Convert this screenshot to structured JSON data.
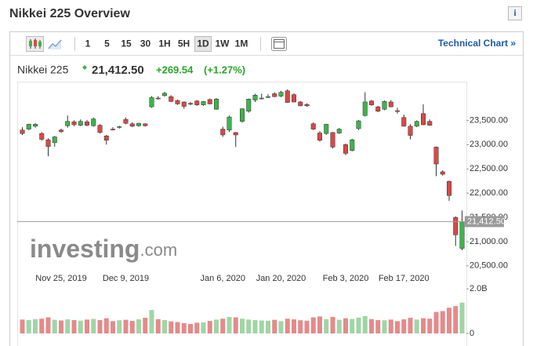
{
  "header": {
    "title": "Nikkei 225 Overview",
    "info": "i"
  },
  "toolbar": {
    "intervals": [
      "1",
      "5",
      "15",
      "30",
      "1H",
      "5H",
      "1D",
      "1W",
      "1M"
    ],
    "selected": "1D",
    "link": "Technical Chart »"
  },
  "quote": {
    "name": "Nikkei 225",
    "last": "21,412.50",
    "change": "+269.54",
    "change_pct": "(+1.27%)"
  },
  "chart_data": {
    "type": "candlestick",
    "watermark_brand": "investing",
    "watermark_domain": ".com",
    "categories": [
      null,
      null,
      null,
      null,
      null,
      null,
      "Nov 25, 2019",
      null,
      null,
      null,
      null,
      null,
      null,
      null,
      null,
      null,
      "Dec 9, 2019",
      null,
      null,
      null,
      null,
      null,
      null,
      null,
      null,
      null,
      null,
      null,
      null,
      null,
      null,
      "Jan 6, 2020",
      null,
      null,
      null,
      null,
      null,
      null,
      null,
      null,
      "Jan 20, 2020",
      null,
      null,
      null,
      null,
      null,
      null,
      null,
      null,
      null,
      "Feb 3, 2020",
      null,
      null,
      null,
      null,
      null,
      null,
      null,
      null,
      "Feb 17, 2020",
      null,
      null,
      null,
      null,
      null,
      null,
      null,
      null,
      null
    ],
    "open": [
      23300,
      23320,
      23380,
      23230,
      23100,
      23040,
      23300,
      23390,
      23470,
      23400,
      23470,
      23390,
      23400,
      23180,
      23320,
      23360,
      23520,
      23430,
      23390,
      23430,
      23780,
      23960,
      24010,
      23990,
      23910,
      23880,
      23850,
      23900,
      23820,
      23930,
      23730,
      23320,
      23300,
      23250,
      23480,
      23690,
      23920,
      23950,
      23980,
      24050,
      24000,
      24110,
      24030,
      23880,
      23830,
      23430,
      23240,
      23230,
      23250,
      23240,
      23000,
      22880,
      23330,
      23600,
      23900,
      23780,
      23730,
      23880,
      23700,
      23560,
      23380,
      23380,
      23640,
      23480,
      22950,
      22440,
      22240,
      21500,
      20860
    ],
    "high": [
      23360,
      23430,
      23440,
      23260,
      23130,
      23180,
      23330,
      23600,
      23500,
      23520,
      23510,
      23560,
      23420,
      23200,
      23360,
      23390,
      23560,
      23460,
      23450,
      23440,
      24000,
      24000,
      24090,
      24020,
      23930,
      23890,
      23880,
      23920,
      23900,
      23950,
      23960,
      23370,
      23600,
      23260,
      23750,
      23950,
      24050,
      24050,
      24040,
      24080,
      24110,
      24140,
      24060,
      23900,
      23850,
      23460,
      23280,
      23430,
      23260,
      23340,
      23020,
      23120,
      23510,
      24080,
      23920,
      23800,
      23910,
      23920,
      23760,
      23620,
      23420,
      23500,
      23830,
      23520,
      22960,
      22470,
      22260,
      21520,
      21640
    ],
    "low": [
      23200,
      23300,
      23350,
      23080,
      22760,
      22960,
      23240,
      23350,
      23380,
      23380,
      23380,
      23370,
      23230,
      23000,
      23290,
      23330,
      23420,
      23360,
      23370,
      23370,
      23760,
      23930,
      23990,
      23880,
      23820,
      23740,
      23810,
      23800,
      23800,
      23830,
      23720,
      23160,
      23260,
      22950,
      23450,
      23660,
      23880,
      23930,
      23960,
      23980,
      23980,
      23860,
      23870,
      23790,
      23780,
      23300,
      23060,
      23200,
      22920,
      23220,
      22780,
      22860,
      23300,
      23580,
      23800,
      23670,
      23710,
      23770,
      23640,
      23370,
      23110,
      23360,
      23400,
      23390,
      22350,
      22360,
      21840,
      20910,
      20820
    ],
    "close": [
      23230,
      23420,
      23420,
      23110,
      22960,
      23160,
      23270,
      23480,
      23410,
      23480,
      23400,
      23530,
      23250,
      23090,
      23310,
      23370,
      23440,
      23380,
      23440,
      23390,
      23970,
      23950,
      24060,
      23890,
      23840,
      23790,
      23840,
      23820,
      23890,
      23840,
      23940,
      23200,
      23570,
      23200,
      23740,
      23940,
      24020,
      23960,
      23990,
      23990,
      24080,
      23870,
      23880,
      23800,
      23800,
      23320,
      23090,
      23420,
      22950,
      23320,
      22820,
      23100,
      23490,
      23880,
      23820,
      23690,
      23890,
      23780,
      23690,
      23380,
      23190,
      23480,
      23410,
      23400,
      22600,
      22390,
      21950,
      21140,
      21412.5
    ],
    "volume": [
      620000000.0,
      600000000.0,
      640000000.0,
      660000000.0,
      720000000.0,
      610000000.0,
      580000000.0,
      630000000.0,
      600000000.0,
      570000000.0,
      620000000.0,
      650000000.0,
      600000000.0,
      680000000.0,
      550000000.0,
      590000000.0,
      610000000.0,
      560000000.0,
      630000000.0,
      700000000.0,
      1050000000.0,
      640000000.0,
      600000000.0,
      540000000.0,
      510000000.0,
      460000000.0,
      420000000.0,
      480000000.0,
      500000000.0,
      560000000.0,
      620000000.0,
      660000000.0,
      740000000.0,
      720000000.0,
      660000000.0,
      620000000.0,
      600000000.0,
      580000000.0,
      570000000.0,
      610000000.0,
      550000000.0,
      660000000.0,
      630000000.0,
      590000000.0,
      570000000.0,
      720000000.0,
      760000000.0,
      640000000.0,
      740000000.0,
      610000000.0,
      680000000.0,
      650000000.0,
      710000000.0,
      780000000.0,
      640000000.0,
      600000000.0,
      590000000.0,
      620000000.0,
      550000000.0,
      630000000.0,
      700000000.0,
      620000000.0,
      680000000.0,
      660000000.0,
      960000000.0,
      1000000000.0,
      1150000000.0,
      1220000000.0,
      1380000000.0
    ],
    "ylim": [
      20400,
      24300
    ],
    "yticks": [
      {
        "value": 20500,
        "label": "20,500.00"
      },
      {
        "value": 21000,
        "label": "21,000.00"
      },
      {
        "value": 21500,
        "label": "21,500.00"
      },
      {
        "value": 22000,
        "label": "22,000.00"
      },
      {
        "value": 22500,
        "label": "22,500.00"
      },
      {
        "value": 23000,
        "label": "23,000.00"
      },
      {
        "value": 23500,
        "label": "23,500.00"
      }
    ],
    "y2lim": [
      0,
      2000000000
    ],
    "y2ticks": [
      0,
      {
        "value": 2000000000,
        "label": "2.0B"
      }
    ],
    "up_color": "#3cb54a",
    "down_color": "#d94848",
    "volume_up_color": "#9fd6a4",
    "volume_down_color": "#e58a8a",
    "last_price_line": true
  }
}
